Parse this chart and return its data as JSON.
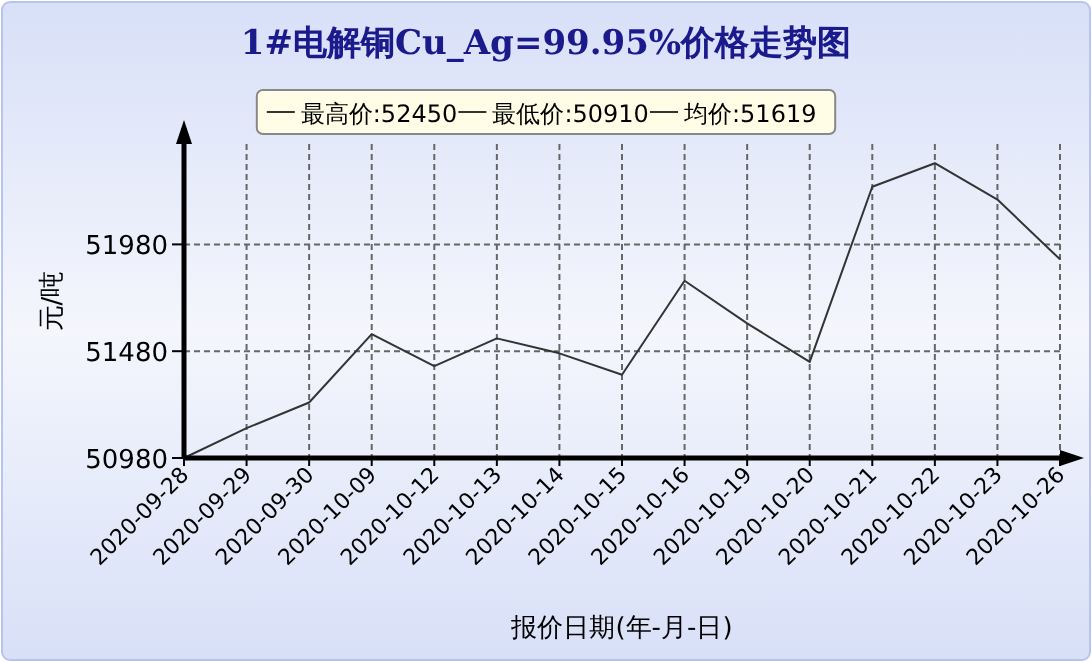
{
  "chart_data": {
    "type": "line",
    "title": "1#电解铜Cu_Ag=99.95%价格走势图",
    "xlabel": "报价日期(年-月-日)",
    "ylabel": "元/吨",
    "annotations": [
      "最高价:52450",
      "最低价:50910",
      "均价:51619"
    ],
    "categories": [
      "2020-09-28",
      "2020-09-29",
      "2020-09-30",
      "2020-10-09",
      "2020-10-12",
      "2020-10-13",
      "2020-10-14",
      "2020-10-15",
      "2020-10-16",
      "2020-10-19",
      "2020-10-20",
      "2020-10-21",
      "2020-10-22",
      "2020-10-23",
      "2020-10-26"
    ],
    "series": [
      {
        "color": "#333333",
        "values": [
          50980,
          51120,
          51240,
          51560,
          51410,
          51540,
          51470,
          51370,
          51810,
          51610,
          51430,
          52250,
          52360,
          52190,
          51910
        ]
      }
    ],
    "ylim": [
      50980,
      52450
    ],
    "yticks": [
      50980,
      51480,
      51980
    ],
    "grid": true,
    "marker": "none",
    "line_style": "solid"
  }
}
